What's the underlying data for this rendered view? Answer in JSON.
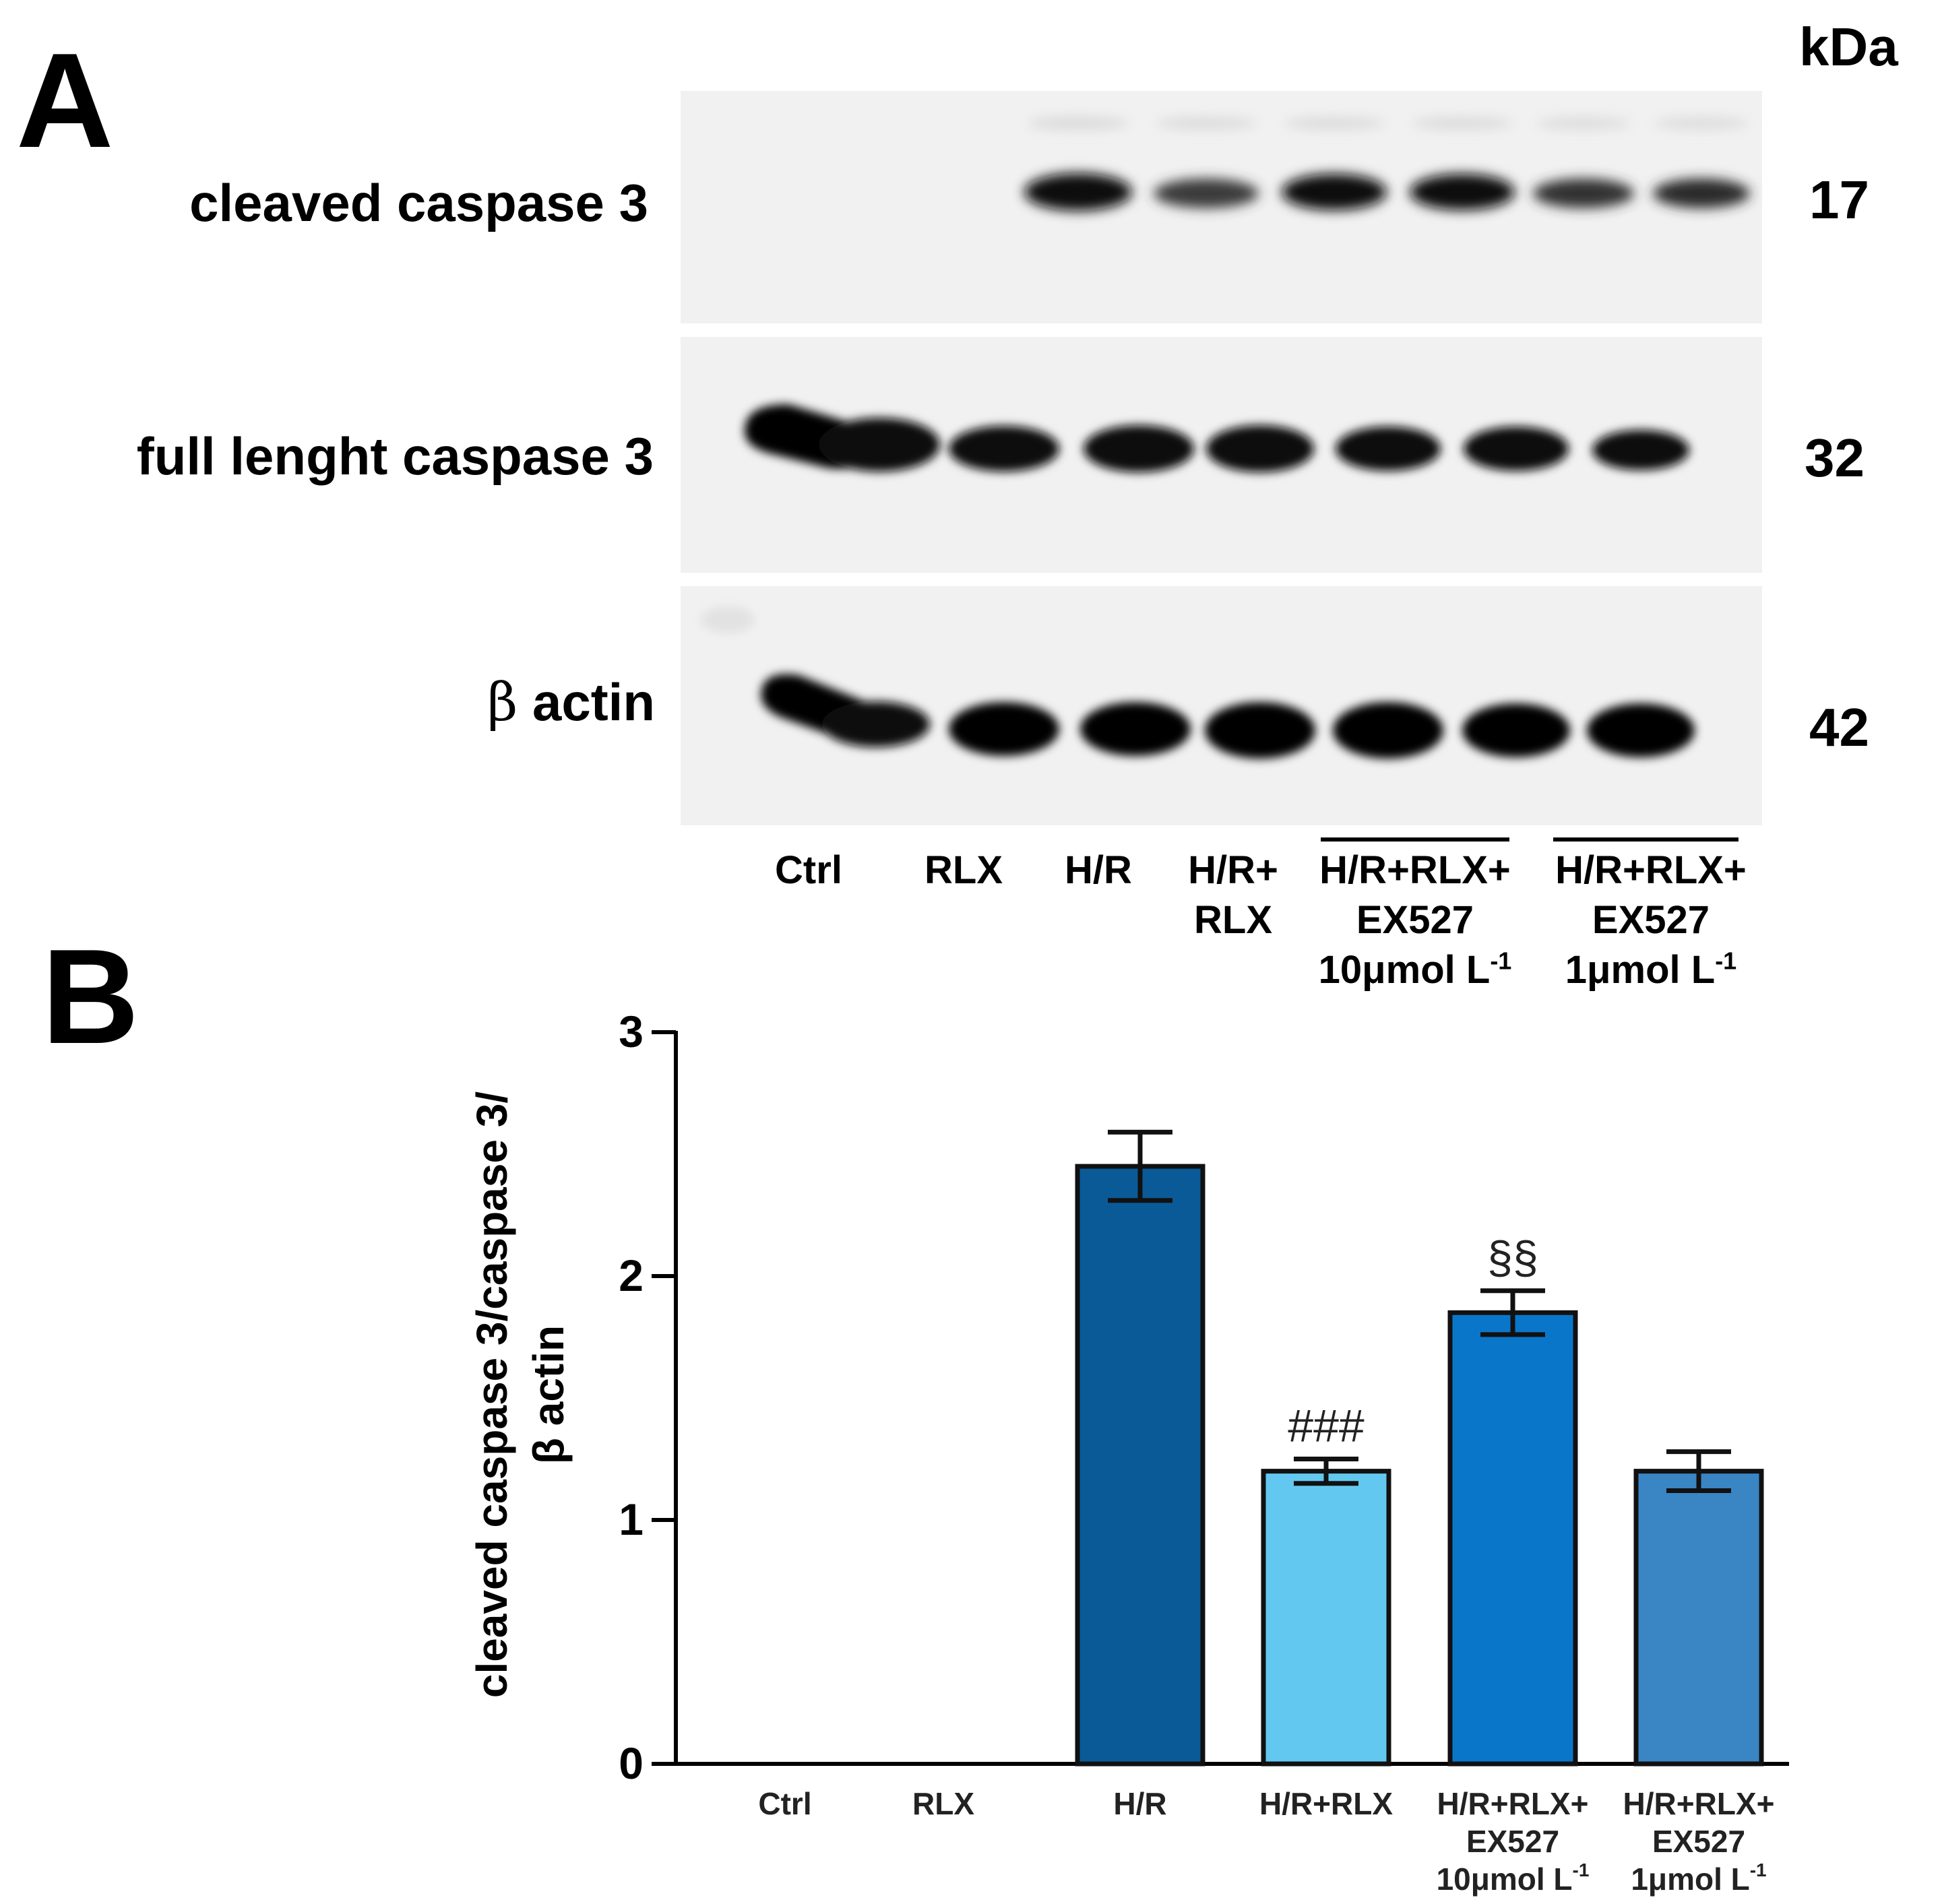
{
  "panel_a": {
    "letter": "A",
    "unit_header": "kDa",
    "blots": [
      {
        "protein": "cleaved caspase 3",
        "kda": "17"
      },
      {
        "protein": "full lenght caspase 3",
        "kda": "32"
      },
      {
        "protein_prefix": "β",
        "protein": "actin",
        "kda": "42"
      }
    ],
    "lanes": [
      {
        "lines": [
          "Ctrl"
        ]
      },
      {
        "lines": [
          "RLX"
        ]
      },
      {
        "lines": [
          "H/R"
        ]
      },
      {
        "lines": [
          "H/R+",
          "RLX"
        ]
      },
      {
        "lines": [
          "H/R+RLX+",
          "EX527",
          "10μmol L"
        ],
        "superscript": "-1"
      },
      {
        "lines": [
          "H/R+RLX+",
          "EX527",
          "1μmol L"
        ],
        "superscript": "-1"
      }
    ]
  },
  "panel_b": {
    "letter": "B"
  },
  "chart_data": {
    "type": "bar",
    "categories": [
      "Ctrl",
      "RLX",
      "H/R",
      "H/R+RLX",
      "H/R+RLX+ EX527 10μmol L-1",
      "H/R+RLX+ EX527 1μmol L-1"
    ],
    "category_lines": [
      [
        "Ctrl"
      ],
      [
        "RLX"
      ],
      [
        "H/R"
      ],
      [
        "H/R+RLX"
      ],
      [
        "H/R+RLX+",
        "EX527",
        "10μmol L"
      ],
      [
        "H/R+RLX+",
        "EX527",
        "1μmol L"
      ]
    ],
    "category_superscripts": [
      "",
      "",
      "",
      "",
      "-1",
      "-1"
    ],
    "values": [
      0,
      0,
      2.45,
      1.2,
      1.85,
      1.2
    ],
    "errors": [
      0,
      0,
      0.14,
      0.05,
      0.09,
      0.08
    ],
    "annotations": [
      "",
      "",
      "",
      "###",
      "§§",
      ""
    ],
    "colors": [
      "#0b5a98",
      "#0b5a98",
      "#0b5a98",
      "#63c8f0",
      "#0a76c9",
      "#3a85c3"
    ],
    "ylabel_lines": [
      "cleaved caspase 3/caspase 3/",
      "β actin"
    ],
    "ylim": [
      0,
      3
    ],
    "yticks": [
      "0",
      "1",
      "2",
      "3"
    ],
    "grid": false
  }
}
